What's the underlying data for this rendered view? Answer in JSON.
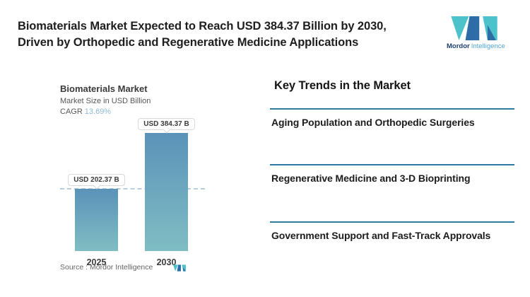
{
  "header": {
    "title_line1": "Biomaterials Market Expected to Reach USD 384.37 Billion by 2030,",
    "title_line2": "Driven by Orthopedic and Regenerative Medicine Applications"
  },
  "brand": {
    "name_bold": "Mordor",
    "name_light": "Intelligence"
  },
  "chart": {
    "title": "Biomaterials Market",
    "subtitle": "Market Size in USD Billion",
    "cagr_label": "CAGR",
    "cagr_value": "13.69%",
    "bars": [
      {
        "year": "2025",
        "label": "USD 202.37 B"
      },
      {
        "year": "2030",
        "label": "USD 384.37 B"
      }
    ],
    "source": "Source :  Mordor Intelligence"
  },
  "chart_data": {
    "type": "bar",
    "title": "Biomaterials Market",
    "subtitle": "Market Size in USD Billion",
    "unit": "USD Billion",
    "cagr": "13.69%",
    "categories": [
      "2025",
      "2030"
    ],
    "values": [
      202.37,
      384.37
    ],
    "data_labels": [
      "USD 202.37 B",
      "USD 384.37 B"
    ],
    "reference_line": 202.37,
    "ylim": [
      0,
      384.37
    ],
    "grid": false,
    "legend": "none"
  },
  "trends": {
    "heading": "Key Trends in the Market",
    "items": [
      "Aging Population and Orthopedic Surgeries",
      "Regenerative Medicine and 3-D Bioprinting",
      "Government Support and Fast-Track Approvals"
    ]
  },
  "colors": {
    "logo_teal": "#4cc3cb",
    "logo_blue": "#2d6ca6",
    "bar_top": "#5b92b9",
    "bar_bottom": "#7fbdc3",
    "cagr_value": "#8fb9d5",
    "divider": "#2e7aa3",
    "dashed_line": "#b7cedd"
  }
}
